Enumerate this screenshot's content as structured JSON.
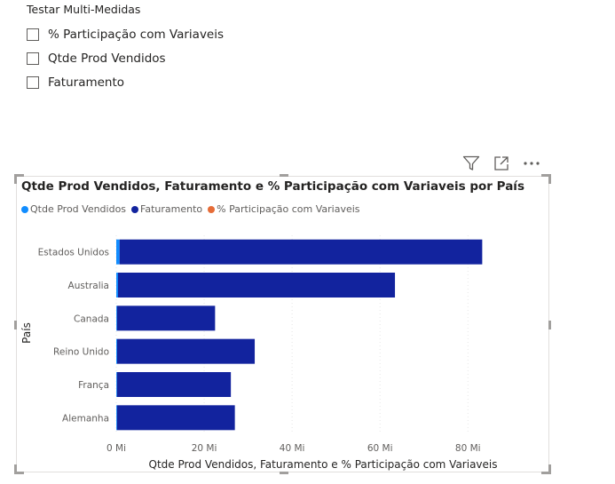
{
  "slicer": {
    "title": "Testar Multi-Medidas",
    "options": [
      {
        "label": "% Participação com Variaveis",
        "checked": false
      },
      {
        "label": "Qtde Prod Vendidos",
        "checked": false
      },
      {
        "label": "Faturamento",
        "checked": false
      }
    ]
  },
  "toolbar": {
    "icons": [
      "filter-icon",
      "focus-mode-icon",
      "more-options-icon"
    ]
  },
  "colors": {
    "qtde": "#118dff",
    "faturamento": "#12239e",
    "participacao": "#e66c37"
  },
  "chart_data": {
    "type": "bar",
    "orientation": "horizontal",
    "stacked": true,
    "title": "Qtde Prod Vendidos, Faturamento e % Participação com Variaveis por País",
    "xlabel": "Qtde Prod Vendidos, Faturamento e % Participação com Variaveis",
    "ylabel": "País",
    "categories": [
      "Estados Unidos",
      "Australia",
      "Canada",
      "Reino Unido",
      "França",
      "Alemanha"
    ],
    "series": [
      {
        "name": "Qtde Prod Vendidos",
        "values": [
          0.75,
          0.4,
          0.18,
          0.2,
          0.17,
          0.18
        ]
      },
      {
        "name": "Faturamento",
        "values": [
          82.5,
          63.0,
          22.3,
          31.3,
          25.9,
          26.8
        ]
      },
      {
        "name": "% Participação com Variaveis",
        "values": [
          0,
          0,
          0,
          0,
          0,
          0
        ]
      }
    ],
    "xlim": [
      0,
      86
    ],
    "xticks": [
      0,
      20,
      40,
      60,
      80
    ],
    "xtick_labels": [
      "0 Mi",
      "20 Mi",
      "40 Mi",
      "60 Mi",
      "80 Mi"
    ],
    "grid": true,
    "legend_position": "top-left"
  }
}
